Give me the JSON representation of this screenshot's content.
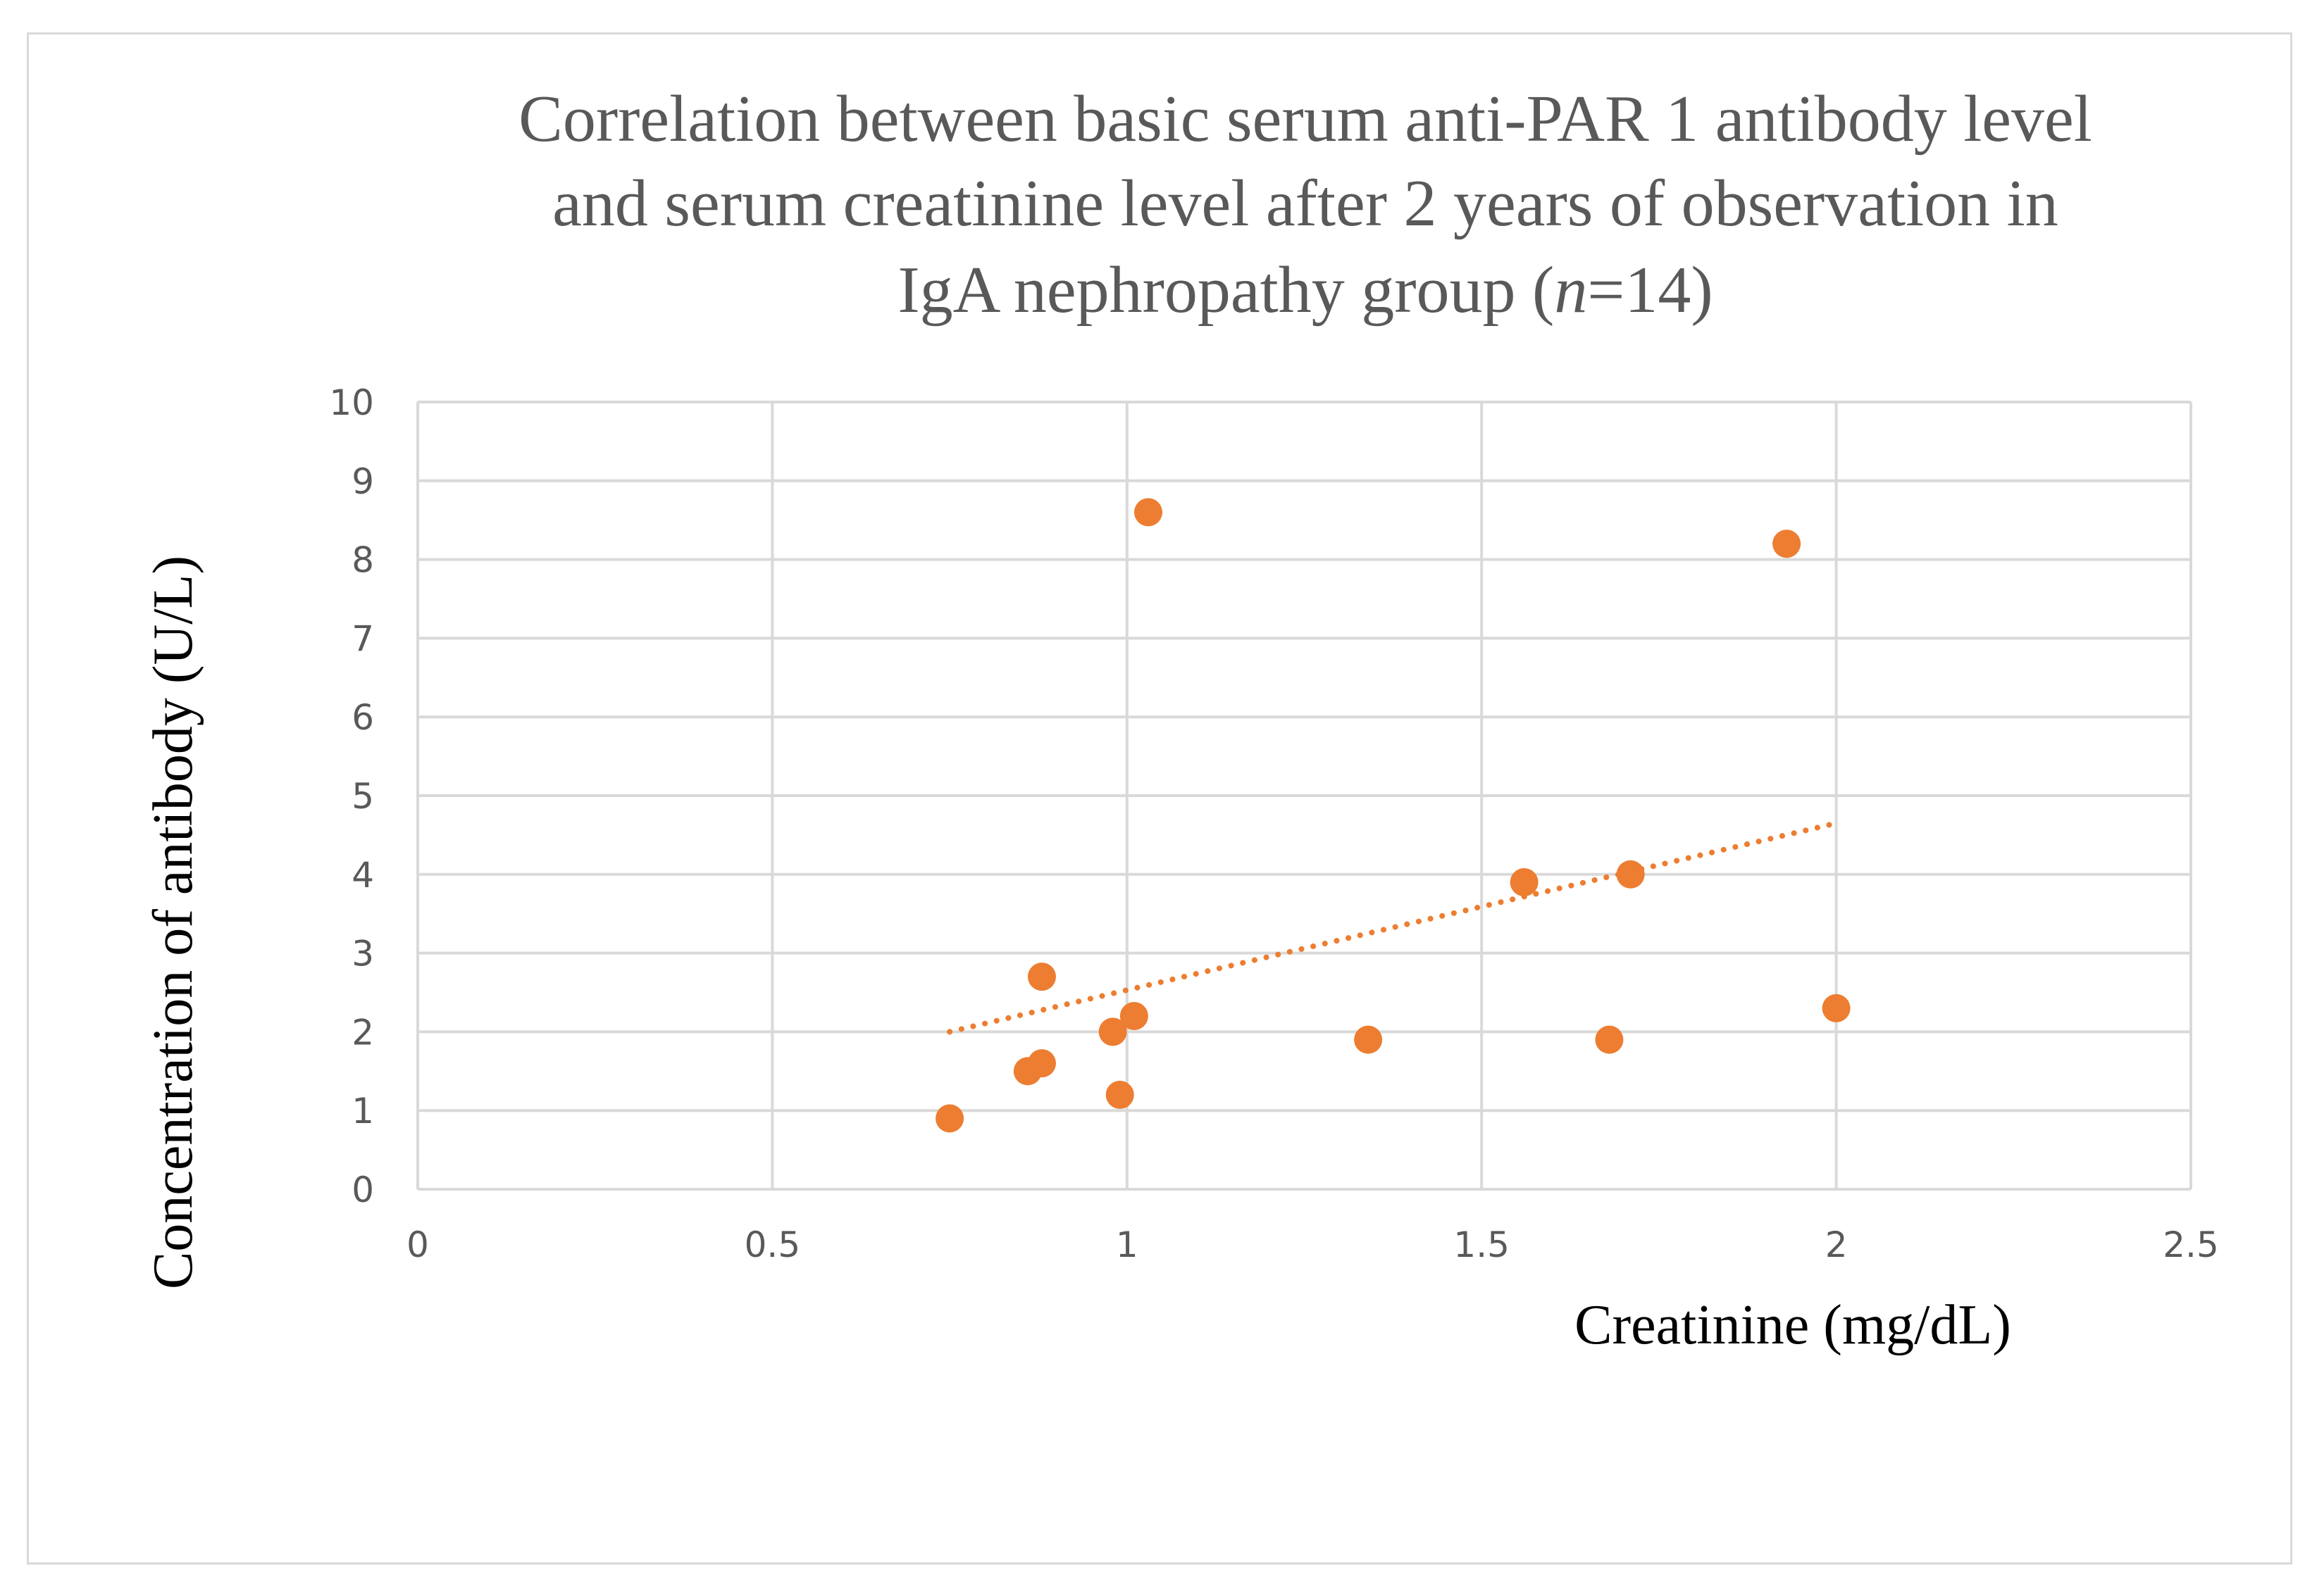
{
  "chart_data": {
    "type": "scatter",
    "title_lines": [
      "Correlation between basic serum anti-PAR 1 antibody level",
      "and serum creatinine level  after 2 years of observation in"
    ],
    "title_line3_prefix": "IgA nephropathy group (",
    "title_line3_italic": "n",
    "title_line3_suffix": "=14)",
    "xlabel": "Creatinine (mg/dL)",
    "ylabel": "Concentration of antibody (U/L)",
    "xlim": [
      0,
      2.5
    ],
    "ylim": [
      0,
      10
    ],
    "x_ticks": [
      "0",
      "0.5",
      "1",
      "1.5",
      "2",
      "2.5"
    ],
    "y_ticks": [
      "0",
      "1",
      "2",
      "3",
      "4",
      "5",
      "6",
      "7",
      "8",
      "9",
      "10"
    ],
    "grid": true,
    "legend": "none",
    "series": [
      {
        "name": "Anti-PAR 1 antibody",
        "color": "#ED7D31",
        "points": [
          {
            "x": 0.75,
            "y": 0.9
          },
          {
            "x": 0.86,
            "y": 1.5
          },
          {
            "x": 0.88,
            "y": 1.6
          },
          {
            "x": 0.88,
            "y": 2.7
          },
          {
            "x": 0.98,
            "y": 2.0
          },
          {
            "x": 0.99,
            "y": 1.2
          },
          {
            "x": 1.01,
            "y": 2.2
          },
          {
            "x": 1.03,
            "y": 8.6
          },
          {
            "x": 1.34,
            "y": 1.9
          },
          {
            "x": 1.56,
            "y": 3.9
          },
          {
            "x": 1.68,
            "y": 1.9
          },
          {
            "x": 1.71,
            "y": 4.0
          },
          {
            "x": 1.93,
            "y": 8.2
          },
          {
            "x": 2.0,
            "y": 2.3
          }
        ]
      }
    ],
    "trendline": {
      "type": "linear",
      "style": "dotted",
      "color": "#ED7D31",
      "start": {
        "x": 0.75,
        "y": 2.0
      },
      "end": {
        "x": 2.0,
        "y": 4.65
      }
    },
    "colors": {
      "gridline": "#d9d9d9",
      "tick_text": "#595959",
      "title_text": "#595959",
      "axis_title_text": "#000000"
    }
  }
}
